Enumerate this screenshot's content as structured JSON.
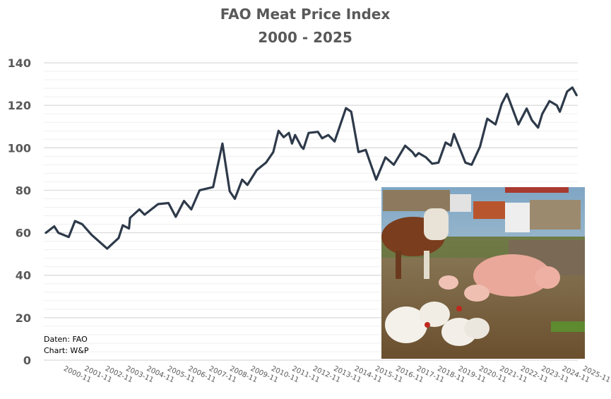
{
  "chart_data": {
    "type": "line",
    "title": "FAO Meat Price Index",
    "subtitle": "2000 - 2025",
    "xlabel": "",
    "ylabel": "",
    "ylim": [
      0,
      140
    ],
    "yticks": [
      0,
      20,
      40,
      60,
      80,
      100,
      120,
      140
    ],
    "ytick_labels": [
      "0",
      "20",
      "40",
      "60",
      "80",
      "100",
      "120",
      "140"
    ],
    "grid": true,
    "minor_grid_step": 4,
    "xtick_labels": [
      "2000-11",
      "2001-11",
      "2002-11",
      "2003-11",
      "2004-11",
      "2005-11",
      "2006-11",
      "2007-11",
      "2008-11",
      "2009-11",
      "2010-11",
      "2011-11",
      "2012-11",
      "2013-11",
      "2014-11",
      "2015-11",
      "2016-11",
      "2017-11",
      "2018-11",
      "2019-11",
      "2020-11",
      "2021-11",
      "2022-11",
      "2023-11",
      "2024-11",
      "2025-11"
    ],
    "series": [
      {
        "name": "FAO Meat Price Index",
        "color": "#2e3a4a",
        "x": [
          2000.0,
          2000.4,
          2000.6,
          2001.1,
          2001.4,
          2001.75,
          2002.2,
          2002.95,
          2003.5,
          2003.7,
          2004.0,
          2004.05,
          2004.5,
          2004.75,
          2005.4,
          2005.9,
          2006.25,
          2006.65,
          2007.0,
          2007.4,
          2008.05,
          2008.5,
          2008.85,
          2009.1,
          2009.45,
          2009.7,
          2010.15,
          2010.6,
          2010.95,
          2011.2,
          2011.45,
          2011.7,
          2011.85,
          2012.0,
          2012.3,
          2012.4,
          2012.65,
          2013.1,
          2013.3,
          2013.6,
          2013.9,
          2014.45,
          2014.7,
          2015.05,
          2015.4,
          2015.9,
          2016.35,
          2016.75,
          2017.3,
          2017.65,
          2017.8,
          2017.95,
          2018.3,
          2018.6,
          2018.9,
          2019.25,
          2019.5,
          2019.65,
          2020.2,
          2020.5,
          2020.9,
          2021.25,
          2021.65,
          2021.95,
          2022.2,
          2022.75,
          2023.15,
          2023.4,
          2023.7,
          2023.9,
          2024.25,
          2024.6,
          2024.75,
          2025.1,
          2025.35,
          2025.55
        ],
        "values": [
          60,
          63,
          60,
          58,
          65.5,
          64,
          59,
          52.5,
          57.5,
          63.5,
          62,
          67,
          71,
          68.5,
          73.5,
          74,
          67.5,
          75,
          71,
          80,
          81.5,
          102,
          79.5,
          76,
          85,
          82.5,
          89.5,
          93,
          98,
          108,
          105,
          107,
          102,
          106,
          100.5,
          99.5,
          107,
          107.5,
          104.5,
          106,
          103,
          118.7,
          117,
          98,
          99,
          85,
          95.5,
          92,
          101,
          98,
          96,
          97.5,
          95.5,
          92.5,
          93,
          102.5,
          101,
          106.5,
          93,
          92,
          100.5,
          113.7,
          111,
          120.7,
          125.4,
          111,
          118.5,
          113,
          109.5,
          116,
          122,
          120,
          117,
          126.5,
          128.4,
          124.8
        ]
      }
    ],
    "annotations": [
      "Daten: FAO",
      "Chart: W&P"
    ]
  },
  "photo": {
    "label": "Farm animals and livestock trucks photo"
  }
}
